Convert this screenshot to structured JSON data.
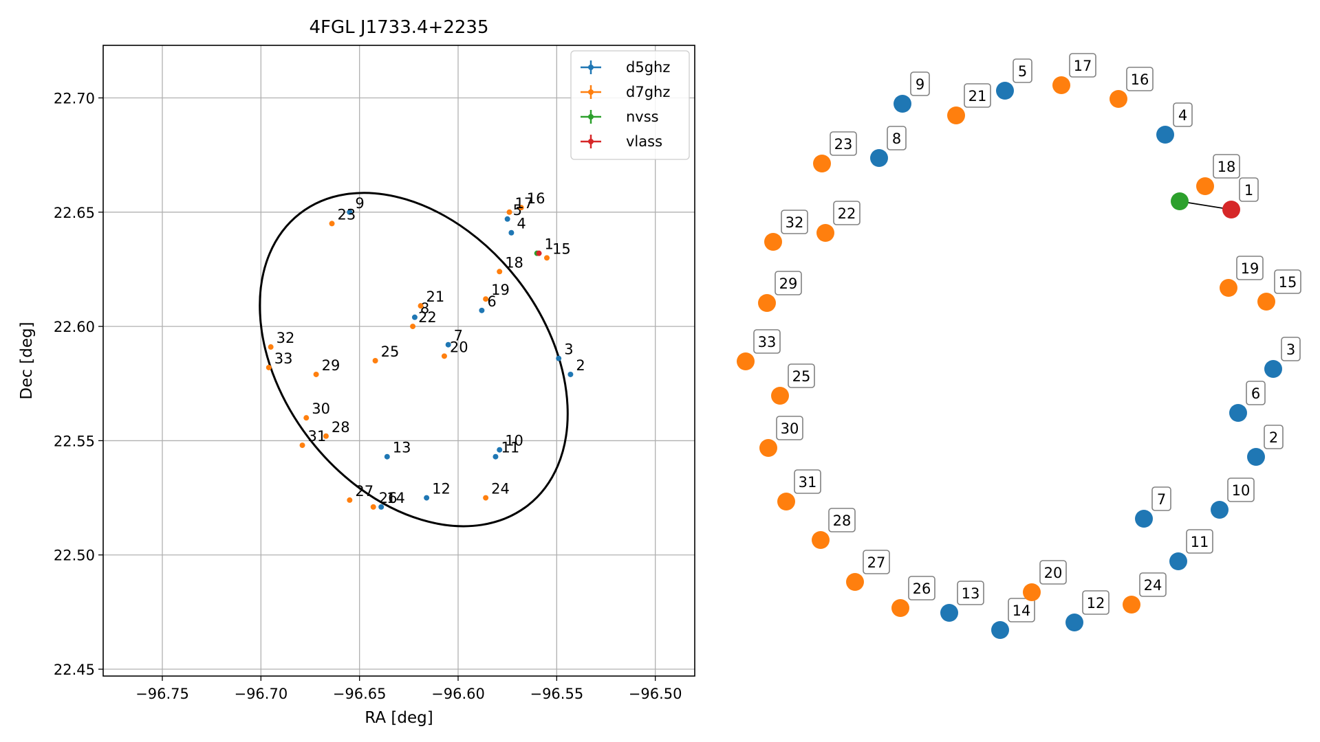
{
  "chart_data": [
    {
      "type": "scatter",
      "title": "4FGL J1733.4+2235",
      "xlabel": "RA [deg]",
      "ylabel": "Dec [deg]",
      "xlim": [
        -96.78,
        -96.48
      ],
      "ylim": [
        22.447,
        22.723
      ],
      "x_ticks": [
        -96.75,
        -96.7,
        -96.65,
        -96.6,
        -96.55,
        -96.5
      ],
      "x_tick_labels": [
        "−96.75",
        "−96.70",
        "−96.65",
        "−96.60",
        "−96.55",
        "−96.50"
      ],
      "y_ticks": [
        22.45,
        22.5,
        22.55,
        22.6,
        22.65,
        22.7
      ],
      "y_tick_labels": [
        "22.45",
        "22.50",
        "22.55",
        "22.60",
        "22.65",
        "22.70"
      ],
      "grid": true,
      "legend_position": "top-right",
      "ellipse": {
        "center_ra": -96.6225,
        "center_dec": 22.5855,
        "semi_width_ra": 0.0665,
        "semi_height_dec": 0.081,
        "angle_deg": 38
      },
      "series": [
        {
          "name": "d5ghz",
          "color": "#1f77b4",
          "points": [
            {
              "id": "2",
              "ra": -96.543,
              "dec": 22.579
            },
            {
              "id": "3",
              "ra": -96.549,
              "dec": 22.586
            },
            {
              "id": "4",
              "ra": -96.573,
              "dec": 22.641
            },
            {
              "id": "5",
              "ra": -96.575,
              "dec": 22.647
            },
            {
              "id": "6",
              "ra": -96.588,
              "dec": 22.607
            },
            {
              "id": "7",
              "ra": -96.605,
              "dec": 22.592
            },
            {
              "id": "8",
              "ra": -96.622,
              "dec": 22.604
            },
            {
              "id": "9",
              "ra": -96.655,
              "dec": 22.65
            },
            {
              "id": "10",
              "ra": -96.579,
              "dec": 22.546
            },
            {
              "id": "11",
              "ra": -96.581,
              "dec": 22.543
            },
            {
              "id": "12",
              "ra": -96.616,
              "dec": 22.525
            },
            {
              "id": "13",
              "ra": -96.636,
              "dec": 22.543
            },
            {
              "id": "14",
              "ra": -96.639,
              "dec": 22.521
            }
          ]
        },
        {
          "name": "d7ghz",
          "color": "#ff7f0e",
          "points": [
            {
              "id": "15",
              "ra": -96.555,
              "dec": 22.63
            },
            {
              "id": "16",
              "ra": -96.568,
              "dec": 22.652
            },
            {
              "id": "17",
              "ra": -96.574,
              "dec": 22.65
            },
            {
              "id": "18",
              "ra": -96.579,
              "dec": 22.624
            },
            {
              "id": "19",
              "ra": -96.586,
              "dec": 22.612
            },
            {
              "id": "20",
              "ra": -96.607,
              "dec": 22.587
            },
            {
              "id": "21",
              "ra": -96.619,
              "dec": 22.609
            },
            {
              "id": "22",
              "ra": -96.623,
              "dec": 22.6
            },
            {
              "id": "23",
              "ra": -96.664,
              "dec": 22.645
            },
            {
              "id": "24",
              "ra": -96.586,
              "dec": 22.525
            },
            {
              "id": "25",
              "ra": -96.642,
              "dec": 22.585
            },
            {
              "id": "26",
              "ra": -96.643,
              "dec": 22.521
            },
            {
              "id": "27",
              "ra": -96.655,
              "dec": 22.524
            },
            {
              "id": "28",
              "ra": -96.667,
              "dec": 22.552
            },
            {
              "id": "29",
              "ra": -96.672,
              "dec": 22.579
            },
            {
              "id": "30",
              "ra": -96.677,
              "dec": 22.56
            },
            {
              "id": "31",
              "ra": -96.679,
              "dec": 22.548
            },
            {
              "id": "32",
              "ra": -96.695,
              "dec": 22.591
            },
            {
              "id": "33",
              "ra": -96.696,
              "dec": 22.582
            }
          ]
        },
        {
          "name": "nvss",
          "color": "#2ca02c",
          "points": [
            {
              "id": "",
              "ra": -96.56,
              "dec": 22.632
            }
          ]
        },
        {
          "name": "vlass",
          "color": "#d62728",
          "points": [
            {
              "id": "1",
              "ra": -96.559,
              "dec": 22.632
            }
          ]
        }
      ]
    },
    {
      "type": "network",
      "title": "",
      "nodes": [
        {
          "id": "1",
          "color": "#d62728"
        },
        {
          "id": "",
          "color": "#2ca02c"
        },
        {
          "id": "2",
          "color": "#1f77b4"
        },
        {
          "id": "3",
          "color": "#1f77b4"
        },
        {
          "id": "4",
          "color": "#1f77b4"
        },
        {
          "id": "5",
          "color": "#1f77b4"
        },
        {
          "id": "6",
          "color": "#1f77b4"
        },
        {
          "id": "7",
          "color": "#1f77b4"
        },
        {
          "id": "8",
          "color": "#1f77b4"
        },
        {
          "id": "9",
          "color": "#1f77b4"
        },
        {
          "id": "10",
          "color": "#1f77b4"
        },
        {
          "id": "11",
          "color": "#1f77b4"
        },
        {
          "id": "12",
          "color": "#1f77b4"
        },
        {
          "id": "13",
          "color": "#1f77b4"
        },
        {
          "id": "14",
          "color": "#1f77b4"
        },
        {
          "id": "15",
          "color": "#ff7f0e"
        },
        {
          "id": "16",
          "color": "#ff7f0e"
        },
        {
          "id": "17",
          "color": "#ff7f0e"
        },
        {
          "id": "18",
          "color": "#ff7f0e"
        },
        {
          "id": "19",
          "color": "#ff7f0e"
        },
        {
          "id": "20",
          "color": "#ff7f0e"
        },
        {
          "id": "21",
          "color": "#ff7f0e"
        },
        {
          "id": "22",
          "color": "#ff7f0e"
        },
        {
          "id": "23",
          "color": "#ff7f0e"
        },
        {
          "id": "24",
          "color": "#ff7f0e"
        },
        {
          "id": "25",
          "color": "#ff7f0e"
        },
        {
          "id": "26",
          "color": "#ff7f0e"
        },
        {
          "id": "27",
          "color": "#ff7f0e"
        },
        {
          "id": "28",
          "color": "#ff7f0e"
        },
        {
          "id": "29",
          "color": "#ff7f0e"
        },
        {
          "id": "30",
          "color": "#ff7f0e"
        },
        {
          "id": "31",
          "color": "#ff7f0e"
        },
        {
          "id": "32",
          "color": "#ff7f0e"
        },
        {
          "id": "33",
          "color": "#ff7f0e"
        }
      ],
      "edges": [
        [
          "",
          "1"
        ]
      ]
    }
  ]
}
